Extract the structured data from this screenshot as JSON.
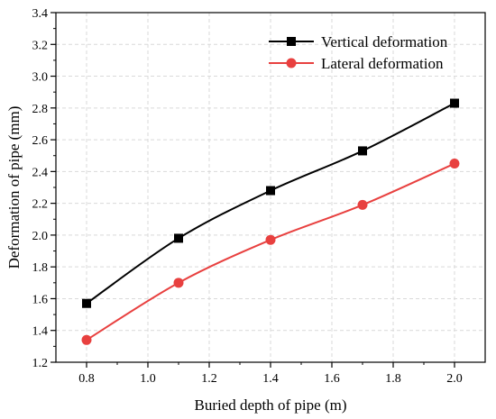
{
  "chart_data": {
    "type": "line",
    "title": "",
    "xlabel": "Buried depth of pipe (m)",
    "ylabel": "Deformation of pipe (mm)",
    "xlim": [
      0.7,
      2.1
    ],
    "ylim": [
      1.2,
      3.4
    ],
    "xticks": [
      "0.8",
      "1.0",
      "1.2",
      "1.4",
      "1.6",
      "1.8",
      "2.0"
    ],
    "yticks": [
      "1.2",
      "1.4",
      "1.6",
      "1.8",
      "2.0",
      "2.2",
      "2.4",
      "2.6",
      "2.8",
      "3.0",
      "3.2",
      "3.4"
    ],
    "grid": true,
    "legend_position": "top-right",
    "x": [
      0.8,
      1.1,
      1.4,
      1.7,
      2.0
    ],
    "series": [
      {
        "name": "Vertical deformation",
        "values": [
          1.57,
          1.98,
          2.28,
          2.53,
          2.83
        ],
        "color": "#000000",
        "marker": "square"
      },
      {
        "name": "Lateral deformation",
        "values": [
          1.34,
          1.7,
          1.97,
          2.19,
          2.45
        ],
        "color": "#e8403f",
        "marker": "circle"
      }
    ]
  }
}
